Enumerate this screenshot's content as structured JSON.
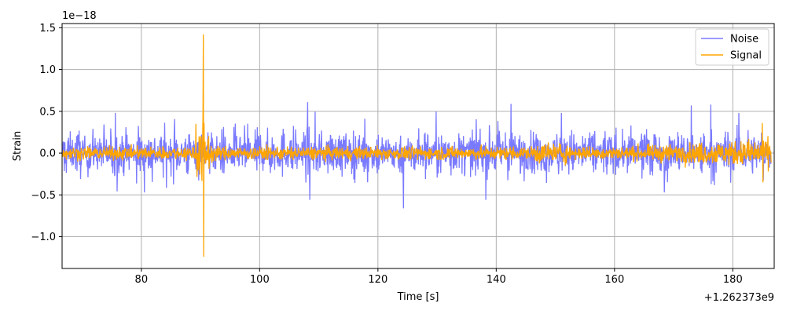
{
  "chart_data": {
    "type": "line",
    "xlabel": "Time [s]",
    "ylabel": "Strain",
    "x_offset_text": "+1.262373e9",
    "y_multiplier_text": "1e−18",
    "xlim": [
      66.6,
      187.0
    ],
    "ylim": [
      -1.38,
      1.55
    ],
    "xticks": [
      80,
      100,
      120,
      140,
      160,
      180
    ],
    "xtick_labels": [
      "80",
      "100",
      "120",
      "140",
      "160",
      "180"
    ],
    "yticks": [
      -1.0,
      -0.5,
      0.0,
      0.5,
      1.0,
      1.5
    ],
    "ytick_labels": [
      "−1.0",
      "−0.5",
      "0.0",
      "0.5",
      "1.0",
      "1.5"
    ],
    "grid": true,
    "legend_position": "top-right",
    "series": [
      {
        "name": "Noise",
        "color": "#7a7aff",
        "x_range": [
          66.6,
          186.5
        ],
        "typical_amplitude": 0.22,
        "peaks": [
          {
            "x": 75.6,
            "y": 0.48
          },
          {
            "x": 80.5,
            "y": -0.47
          },
          {
            "x": 108.1,
            "y": 0.61
          },
          {
            "x": 108.5,
            "y": -0.56
          },
          {
            "x": 124.3,
            "y": -0.66
          },
          {
            "x": 142.5,
            "y": 0.59
          },
          {
            "x": 151.0,
            "y": 0.48
          },
          {
            "x": 173.0,
            "y": 0.57
          },
          {
            "x": 176.3,
            "y": 0.58
          },
          {
            "x": 181.0,
            "y": 0.48
          },
          {
            "x": 168.4,
            "y": -0.47
          }
        ]
      },
      {
        "name": "Signal",
        "color": "#ffa500",
        "x_range": [
          66.6,
          186.5
        ],
        "typical_amplitude": 0.07,
        "peaks": [
          {
            "x": 90.5,
            "y": 1.42
          },
          {
            "x": 90.55,
            "y": -1.24
          },
          {
            "x": 89.2,
            "y": 0.35
          },
          {
            "x": 185.0,
            "y": 0.36
          },
          {
            "x": 185.1,
            "y": -0.35
          }
        ]
      }
    ]
  }
}
